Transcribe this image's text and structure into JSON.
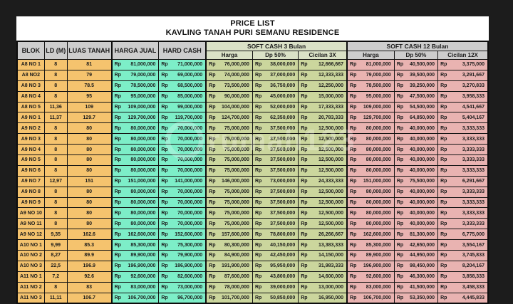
{
  "title": {
    "line1": "PRICE LIST",
    "line2": "KAVLING TANAH PURI SEMANU RESIDENCE"
  },
  "watermark": {
    "text": "rumah123"
  },
  "currency": "Rp",
  "colors": {
    "canvas_bg": "#1C1C1C",
    "sheet_bg": "#FFFFFF",
    "header_gray": "#CDCDCD",
    "header_green": "#DAE1C6",
    "block_orange": "#F5C36E",
    "cash_mint": "#7DEEC8",
    "softcash3_olive": "#CBD69D",
    "softcash12_pink": "#E9B3B1"
  },
  "table": {
    "columns": [
      "BLOK",
      "LD (M)",
      "LUAS TANAH",
      "HARGA JUAL",
      "HARD CASH"
    ],
    "groups": [
      {
        "label": "SOFT CASH 3 Bulan",
        "sub": [
          "Harga",
          "Dp 50%",
          "Cicilan 3X"
        ]
      },
      {
        "label": "SOFT CASH 12 Bulan",
        "sub": [
          "Harga",
          "Dp 50%",
          "Cicilan 12X"
        ]
      }
    ],
    "rows": [
      {
        "blok": "A8 NO 1",
        "ld": "8",
        "luas": "81",
        "harga_jual": "81,000,000",
        "hard_cash": "71,000,000",
        "sc3_harga": "76,000,000",
        "sc3_dp": "38,000,000",
        "sc3_cicilan": "12,666,667",
        "sc12_harga": "81,000,000",
        "sc12_dp": "40,500,000",
        "sc12_cicilan": "3,375,000"
      },
      {
        "blok": "A8 NO2",
        "ld": "8",
        "luas": "79",
        "harga_jual": "79,000,000",
        "hard_cash": "69,000,000",
        "sc3_harga": "74,000,000",
        "sc3_dp": "37,000,000",
        "sc3_cicilan": "12,333,333",
        "sc12_harga": "79,000,000",
        "sc12_dp": "39,500,000",
        "sc12_cicilan": "3,291,667"
      },
      {
        "blok": "A8 NO 3",
        "ld": "8",
        "luas": "78.5",
        "harga_jual": "78,500,000",
        "hard_cash": "68,500,000",
        "sc3_harga": "73,500,000",
        "sc3_dp": "36,750,000",
        "sc3_cicilan": "12,250,000",
        "sc12_harga": "78,500,000",
        "sc12_dp": "39,250,000",
        "sc12_cicilan": "3,270,833"
      },
      {
        "blok": "A8 NO 4",
        "ld": "8",
        "luas": "95",
        "harga_jual": "95,000,000",
        "hard_cash": "85,000,000",
        "sc3_harga": "90,000,000",
        "sc3_dp": "45,000,000",
        "sc3_cicilan": "15,000,000",
        "sc12_harga": "95,000,000",
        "sc12_dp": "47,500,000",
        "sc12_cicilan": "3,958,333"
      },
      {
        "blok": "A8 NO 5",
        "ld": "11,36",
        "luas": "109",
        "harga_jual": "109,000,000",
        "hard_cash": "99,000,000",
        "sc3_harga": "104,000,000",
        "sc3_dp": "52,000,000",
        "sc3_cicilan": "17,333,333",
        "sc12_harga": "109,000,000",
        "sc12_dp": "54,500,000",
        "sc12_cicilan": "4,541,667"
      },
      {
        "blok": "A9 NO 1",
        "ld": "11,37",
        "luas": "129.7",
        "harga_jual": "129,700,000",
        "hard_cash": "119,700,000",
        "sc3_harga": "124,700,000",
        "sc3_dp": "62,350,000",
        "sc3_cicilan": "20,783,333",
        "sc12_harga": "129,700,000",
        "sc12_dp": "64,850,000",
        "sc12_cicilan": "5,404,167"
      },
      {
        "blok": "A9 NO 2",
        "ld": "8",
        "luas": "80",
        "harga_jual": "80,000,000",
        "hard_cash": "70,000,000",
        "sc3_harga": "75,000,000",
        "sc3_dp": "37,500,000",
        "sc3_cicilan": "12,500,000",
        "sc12_harga": "80,000,000",
        "sc12_dp": "40,000,000",
        "sc12_cicilan": "3,333,333"
      },
      {
        "blok": "A9 NO 3",
        "ld": "8",
        "luas": "80",
        "harga_jual": "80,000,000",
        "hard_cash": "70,000,000",
        "sc3_harga": "75,000,000",
        "sc3_dp": "37,500,000",
        "sc3_cicilan": "12,500,000",
        "sc12_harga": "80,000,000",
        "sc12_dp": "40,000,000",
        "sc12_cicilan": "3,333,333"
      },
      {
        "blok": "A9 NO 4",
        "ld": "8",
        "luas": "80",
        "harga_jual": "80,000,000",
        "hard_cash": "70,000,000",
        "sc3_harga": "75,000,000",
        "sc3_dp": "37,500,000",
        "sc3_cicilan": "12,500,000",
        "sc12_harga": "80,000,000",
        "sc12_dp": "40,000,000",
        "sc12_cicilan": "3,333,333"
      },
      {
        "blok": "A9 NO 5",
        "ld": "8",
        "luas": "80",
        "harga_jual": "80,000,000",
        "hard_cash": "70,000,000",
        "sc3_harga": "75,000,000",
        "sc3_dp": "37,500,000",
        "sc3_cicilan": "12,500,000",
        "sc12_harga": "80,000,000",
        "sc12_dp": "40,000,000",
        "sc12_cicilan": "3,333,333"
      },
      {
        "blok": "A9 NO 6",
        "ld": "8",
        "luas": "80",
        "harga_jual": "80,000,000",
        "hard_cash": "70,000,000",
        "sc3_harga": "75,000,000",
        "sc3_dp": "37,500,000",
        "sc3_cicilan": "12,500,000",
        "sc12_harga": "80,000,000",
        "sc12_dp": "40,000,000",
        "sc12_cicilan": "3,333,333"
      },
      {
        "blok": "A9 NO 7",
        "ld": "12,97",
        "luas": "151",
        "harga_jual": "151,000,000",
        "hard_cash": "141,000,000",
        "sc3_harga": "146,000,000",
        "sc3_dp": "73,000,000",
        "sc3_cicilan": "24,333,333",
        "sc12_harga": "151,000,000",
        "sc12_dp": "75,500,000",
        "sc12_cicilan": "6,291,667"
      },
      {
        "blok": "A9 NO 8",
        "ld": "8",
        "luas": "80",
        "harga_jual": "80,000,000",
        "hard_cash": "70,000,000",
        "sc3_harga": "75,000,000",
        "sc3_dp": "37,500,000",
        "sc3_cicilan": "12,500,000",
        "sc12_harga": "80,000,000",
        "sc12_dp": "40,000,000",
        "sc12_cicilan": "3,333,333"
      },
      {
        "blok": "A9 NO 9",
        "ld": "8",
        "luas": "80",
        "harga_jual": "80,000,000",
        "hard_cash": "70,000,000",
        "sc3_harga": "75,000,000",
        "sc3_dp": "37,500,000",
        "sc3_cicilan": "12,500,000",
        "sc12_harga": "80,000,000",
        "sc12_dp": "40,000,000",
        "sc12_cicilan": "3,333,333"
      },
      {
        "blok": "A9 NO 10",
        "ld": "8",
        "luas": "80",
        "harga_jual": "80,000,000",
        "hard_cash": "70,000,000",
        "sc3_harga": "75,000,000",
        "sc3_dp": "37,500,000",
        "sc3_cicilan": "12,500,000",
        "sc12_harga": "80,000,000",
        "sc12_dp": "40,000,000",
        "sc12_cicilan": "3,333,333"
      },
      {
        "blok": "A9 NO 11",
        "ld": "8",
        "luas": "80",
        "harga_jual": "80,000,000",
        "hard_cash": "70,000,000",
        "sc3_harga": "75,000,000",
        "sc3_dp": "37,500,000",
        "sc3_cicilan": "12,500,000",
        "sc12_harga": "80,000,000",
        "sc12_dp": "40,000,000",
        "sc12_cicilan": "3,333,333"
      },
      {
        "blok": "A9 NO 12",
        "ld": "9,35",
        "luas": "162.6",
        "harga_jual": "162,600,000",
        "hard_cash": "152,600,000",
        "sc3_harga": "157,600,000",
        "sc3_dp": "78,800,000",
        "sc3_cicilan": "26,266,667",
        "sc12_harga": "162,600,000",
        "sc12_dp": "81,300,000",
        "sc12_cicilan": "6,775,000"
      },
      {
        "blok": "A10 NO 1",
        "ld": "9,99",
        "luas": "85.3",
        "harga_jual": "85,300,000",
        "hard_cash": "75,300,000",
        "sc3_harga": "80,300,000",
        "sc3_dp": "40,150,000",
        "sc3_cicilan": "13,383,333",
        "sc12_harga": "85,300,000",
        "sc12_dp": "42,650,000",
        "sc12_cicilan": "3,554,167"
      },
      {
        "blok": "A10 NO 2",
        "ld": "8,27",
        "luas": "89.9",
        "harga_jual": "89,900,000",
        "hard_cash": "79,900,000",
        "sc3_harga": "84,900,000",
        "sc3_dp": "42,450,000",
        "sc3_cicilan": "14,150,000",
        "sc12_harga": "89,900,000",
        "sc12_dp": "44,950,000",
        "sc12_cicilan": "3,745,833"
      },
      {
        "blok": "A10 NO 3",
        "ld": "22,5",
        "luas": "196.9",
        "harga_jual": "196,900,000",
        "hard_cash": "186,900,000",
        "sc3_harga": "191,900,000",
        "sc3_dp": "95,950,000",
        "sc3_cicilan": "31,983,333",
        "sc12_harga": "196,900,000",
        "sc12_dp": "98,450,000",
        "sc12_cicilan": "8,204,167"
      },
      {
        "blok": "A11 NO 1",
        "ld": "7,2",
        "luas": "92.6",
        "harga_jual": "92,600,000",
        "hard_cash": "82,600,000",
        "sc3_harga": "87,600,000",
        "sc3_dp": "43,800,000",
        "sc3_cicilan": "14,600,000",
        "sc12_harga": "92,600,000",
        "sc12_dp": "46,300,000",
        "sc12_cicilan": "3,858,333"
      },
      {
        "blok": "A11 NO 2",
        "ld": "8",
        "luas": "83",
        "harga_jual": "83,000,000",
        "hard_cash": "73,000,000",
        "sc3_harga": "78,000,000",
        "sc3_dp": "39,000,000",
        "sc3_cicilan": "13,000,000",
        "sc12_harga": "83,000,000",
        "sc12_dp": "41,500,000",
        "sc12_cicilan": "3,458,333"
      },
      {
        "blok": "A11 NO 3",
        "ld": "11,11",
        "luas": "106.7",
        "harga_jual": "106,700,000",
        "hard_cash": "96,700,000",
        "sc3_harga": "101,700,000",
        "sc3_dp": "50,850,000",
        "sc3_cicilan": "16,950,000",
        "sc12_harga": "106,700,000",
        "sc12_dp": "53,350,000",
        "sc12_cicilan": "4,445,833"
      }
    ]
  }
}
